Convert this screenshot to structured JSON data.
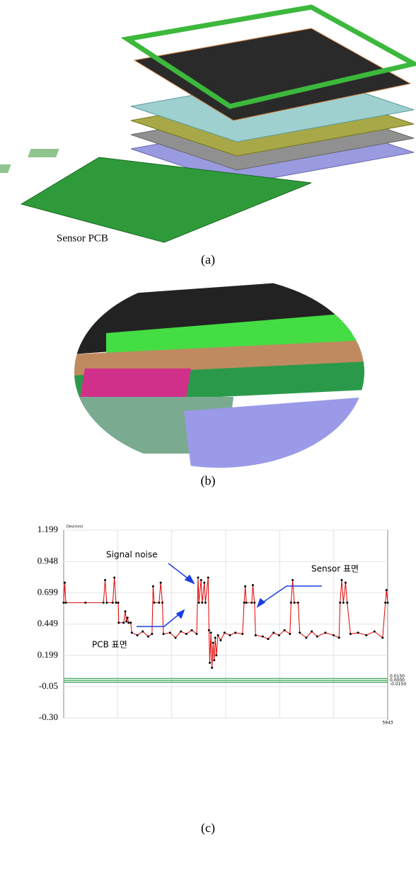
{
  "figure": {
    "panels": [
      {
        "label": "Sensor PCB",
        "caption": "(a)"
      },
      {
        "caption": "(b)"
      },
      {
        "caption": "(c)"
      }
    ]
  },
  "chart_data": {
    "type": "line",
    "y_axis_label": "Dev(mm)",
    "annotations": [
      "Signal noise",
      "Sensor 표면",
      "PCB 표면"
    ],
    "x": [
      0,
      20,
      40,
      400,
      730,
      760,
      790,
      900,
      930,
      960,
      1000,
      1010,
      1100,
      1130,
      1150,
      1170,
      1190,
      1230,
      1250,
      1350,
      1450,
      1550,
      1620,
      1640,
      1660,
      1750,
      1780,
      1810,
      1830,
      1950,
      2050,
      2150,
      2250,
      2350,
      2440,
      2465,
      2480,
      2520,
      2540,
      2580,
      2600,
      2650,
      2665,
      2680,
      2700,
      2720,
      2740,
      2760,
      2780,
      2800,
      2830,
      2880,
      2950,
      3050,
      3150,
      3280,
      3310,
      3330,
      3350,
      3450,
      3470,
      3500,
      3520,
      3650,
      3750,
      3850,
      3950,
      4050,
      4150,
      4170,
      4200,
      4230,
      4300,
      4330,
      4450,
      4550,
      4650,
      4800,
      4950,
      5050,
      5070,
      5100,
      5130,
      5170,
      5200,
      5260,
      5400,
      5550,
      5700,
      5850,
      5900,
      5920,
      5943
    ],
    "values": [
      0.62,
      0.78,
      0.62,
      0.62,
      0.62,
      0.8,
      0.62,
      0.62,
      0.82,
      0.62,
      0.62,
      0.46,
      0.46,
      0.55,
      0.47,
      0.5,
      0.46,
      0.46,
      0.38,
      0.36,
      0.39,
      0.35,
      0.37,
      0.75,
      0.62,
      0.62,
      0.78,
      0.62,
      0.37,
      0.38,
      0.34,
      0.39,
      0.37,
      0.4,
      0.37,
      0.82,
      0.62,
      0.8,
      0.62,
      0.78,
      0.62,
      0.82,
      0.4,
      0.14,
      0.38,
      0.1,
      0.3,
      0.16,
      0.34,
      0.2,
      0.36,
      0.32,
      0.38,
      0.36,
      0.38,
      0.37,
      0.62,
      0.75,
      0.62,
      0.62,
      0.76,
      0.62,
      0.36,
      0.35,
      0.33,
      0.38,
      0.36,
      0.4,
      0.37,
      0.62,
      0.8,
      0.62,
      0.62,
      0.38,
      0.34,
      0.39,
      0.35,
      0.38,
      0.36,
      0.34,
      0.62,
      0.8,
      0.62,
      0.78,
      0.62,
      0.37,
      0.38,
      0.36,
      0.39,
      0.34,
      0.62,
      0.72,
      0.62
    ],
    "color": "#e00000",
    "marker_color": "#000000",
    "ylim": [
      -0.3,
      1.199
    ],
    "yticks": [
      1.199,
      0.948,
      0.699,
      0.449,
      0.199,
      -0.05,
      {
        "value": -0.3,
        "label": "-0.30"
      }
    ],
    "xlim": [
      0,
      5943
    ],
    "xticks": [
      5943
    ],
    "grid": true,
    "reference_lines": [
      {
        "value": 0.015,
        "label": "0.0150"
      },
      {
        "value": 0,
        "label": "0.0000"
      },
      {
        "value": -0.015,
        "label": "-0.0150"
      }
    ],
    "reference_color": "#2e9e4a"
  }
}
